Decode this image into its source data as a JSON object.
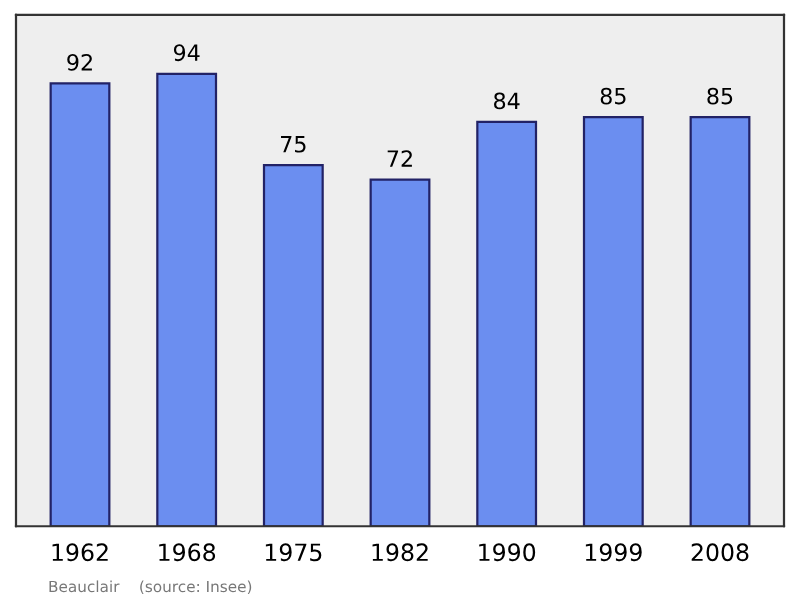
{
  "chart_data": {
    "type": "bar",
    "categories": [
      "1962",
      "1968",
      "1975",
      "1982",
      "1990",
      "1999",
      "2008"
    ],
    "values": [
      92,
      94,
      75,
      72,
      84,
      85,
      85
    ],
    "color": "#6b8ef0",
    "data_labels": true,
    "tick_labels": "x",
    "annotations": [
      "Beauclair    (source: Insee)"
    ]
  }
}
